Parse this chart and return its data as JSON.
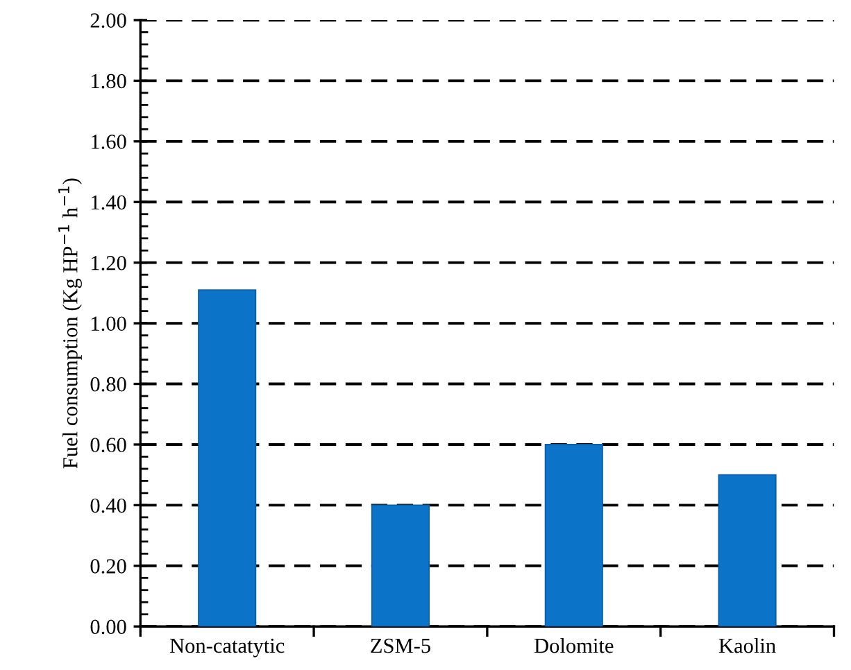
{
  "chart_data": {
    "type": "bar",
    "ylabel": "Fuel consumption (Kg HP$^{−1}$ h$^{−1}$)",
    "categories": [
      "Non-catatytic",
      "ZSM-5",
      "Dolomite",
      "Kaolin"
    ],
    "values": [
      1.11,
      0.4,
      0.6,
      0.5
    ],
    "color": "#0b74c8",
    "ylim": [
      0,
      2.0
    ],
    "yticks": [
      {
        "value": 0,
        "label": "0.00"
      },
      {
        "value": 0.2,
        "label": "0.20"
      },
      {
        "value": 0.4,
        "label": "0.40"
      },
      {
        "value": 0.6,
        "label": "0.60"
      },
      {
        "value": 0.8,
        "label": "0.80"
      },
      {
        "value": 1.0,
        "label": "1.00"
      },
      {
        "value": 1.2,
        "label": "1.20"
      },
      {
        "value": 1.4,
        "label": "1.40"
      },
      {
        "value": 1.6,
        "label": "1.60"
      },
      {
        "value": 1.8,
        "label": "1.80"
      },
      {
        "value": 2.0,
        "label": "2.00"
      }
    ],
    "grid": "y",
    "line_style": "dashed"
  }
}
